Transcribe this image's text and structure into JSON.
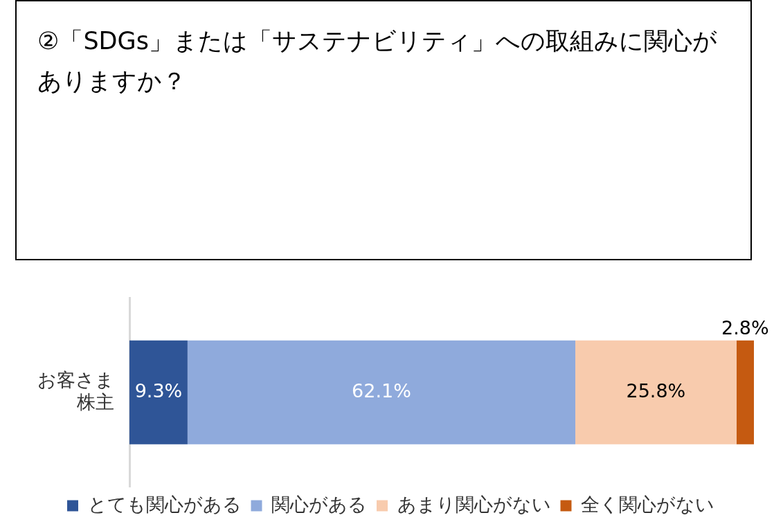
{
  "chart_data": {
    "type": "bar",
    "title": "②「SDGs」または「サステナビリティ」への取組みに関心がありますか？",
    "orientation": "horizontal",
    "stacked": true,
    "categories": [
      "お客さま株主"
    ],
    "xlim": [
      0,
      100
    ],
    "tick_labels": "y",
    "legend": "bottom",
    "series": [
      {
        "name": "とても関心がある",
        "color": "#2f5597",
        "values": [
          9.3
        ],
        "value_labels": [
          "9.3%"
        ]
      },
      {
        "name": "関心がある",
        "color": "#8faadc",
        "values": [
          62.1
        ],
        "value_labels": [
          "62.1%"
        ]
      },
      {
        "name": "あまり関心がない",
        "color": "#f8cbad",
        "values": [
          25.8
        ],
        "value_labels": [
          "25.8%"
        ]
      },
      {
        "name": "全く関心がない",
        "color": "#c55a11",
        "values": [
          2.8
        ],
        "value_labels": [
          "2.8%"
        ]
      }
    ]
  }
}
